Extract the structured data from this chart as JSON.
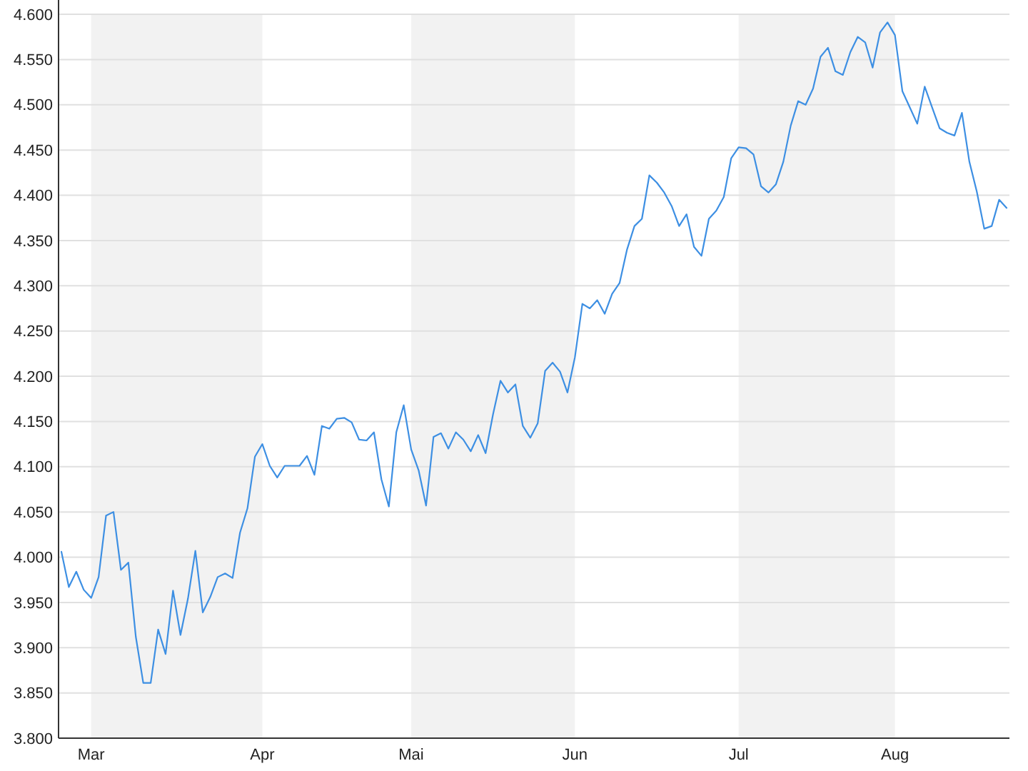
{
  "chart_data": {
    "type": "line",
    "color": "#3d8fe3",
    "categories": [
      null,
      null,
      null,
      null,
      "Mar",
      null,
      null,
      null,
      null,
      null,
      null,
      null,
      null,
      null,
      null,
      null,
      null,
      null,
      null,
      null,
      null,
      null,
      null,
      null,
      null,
      null,
      null,
      "Apr",
      null,
      null,
      null,
      null,
      null,
      null,
      null,
      null,
      null,
      null,
      null,
      null,
      null,
      null,
      null,
      null,
      null,
      null,
      null,
      "Mai",
      null,
      null,
      null,
      null,
      null,
      null,
      null,
      null,
      null,
      null,
      null,
      null,
      null,
      null,
      null,
      null,
      null,
      null,
      null,
      null,
      null,
      "Jun",
      null,
      null,
      null,
      null,
      null,
      null,
      null,
      null,
      null,
      null,
      null,
      null,
      null,
      null,
      null,
      null,
      null,
      null,
      null,
      null,
      null,
      "Jul",
      null,
      null,
      null,
      null,
      null,
      null,
      null,
      null,
      null,
      null,
      null,
      null,
      null,
      null,
      null,
      null,
      null,
      null,
      null,
      null,
      "Aug",
      null,
      null,
      null,
      null,
      null,
      null,
      null,
      null,
      null,
      null,
      null,
      null,
      null,
      null,
      null
    ],
    "values": [
      4.006,
      3.967,
      3.984,
      3.964,
      3.955,
      3.978,
      4.046,
      4.05,
      3.986,
      3.994,
      3.912,
      3.861,
      3.861,
      3.92,
      3.893,
      3.963,
      3.914,
      3.954,
      4.007,
      3.939,
      3.956,
      3.978,
      3.982,
      3.977,
      4.027,
      4.054,
      4.111,
      4.125,
      4.101,
      4.088,
      4.101,
      4.101,
      4.101,
      4.112,
      4.091,
      4.145,
      4.142,
      4.153,
      4.154,
      4.149,
      4.13,
      4.129,
      4.138,
      4.086,
      4.056,
      4.138,
      4.168,
      4.119,
      4.096,
      4.057,
      4.133,
      4.137,
      4.12,
      4.138,
      4.13,
      4.117,
      4.135,
      4.115,
      4.158,
      4.195,
      4.182,
      4.191,
      4.145,
      4.132,
      4.148,
      4.206,
      4.215,
      4.205,
      4.182,
      4.221,
      4.28,
      4.275,
      4.284,
      4.269,
      4.291,
      4.303,
      4.34,
      4.366,
      4.374,
      4.422,
      4.414,
      4.403,
      4.388,
      4.366,
      4.379,
      4.343,
      4.333,
      4.374,
      4.383,
      4.398,
      4.441,
      4.453,
      4.452,
      4.445,
      4.41,
      4.403,
      4.412,
      4.437,
      4.477,
      4.504,
      4.5,
      4.518,
      4.553,
      4.563,
      4.537,
      4.533,
      4.558,
      4.575,
      4.569,
      4.541,
      4.58,
      4.591,
      4.577,
      4.515,
      4.497,
      4.479,
      4.52,
      4.497,
      4.474,
      4.469,
      4.466,
      4.491,
      4.437,
      4.404,
      4.363,
      4.366,
      4.395,
      4.386
    ],
    "ylim": [
      3.8,
      4.6
    ],
    "yticks": [
      {
        "value": 3.8,
        "label": "3.800"
      },
      {
        "value": 3.85,
        "label": "3.850"
      },
      {
        "value": 3.9,
        "label": "3.900"
      },
      {
        "value": 3.95,
        "label": "3.950"
      },
      {
        "value": 4.0,
        "label": "4.000"
      },
      {
        "value": 4.05,
        "label": "4.050"
      },
      {
        "value": 4.1,
        "label": "4.100"
      },
      {
        "value": 4.15,
        "label": "4.150"
      },
      {
        "value": 4.2,
        "label": "4.200"
      },
      {
        "value": 4.25,
        "label": "4.250"
      },
      {
        "value": 4.3,
        "label": "4.300"
      },
      {
        "value": 4.35,
        "label": "4.350"
      },
      {
        "value": 4.4,
        "label": "4.400"
      },
      {
        "value": 4.45,
        "label": "4.450"
      },
      {
        "value": 4.5,
        "label": "4.500"
      },
      {
        "value": 4.55,
        "label": "4.550"
      },
      {
        "value": 4.6,
        "label": "4.600"
      }
    ],
    "grid": "y",
    "bands": [
      {
        "axis": "x",
        "from": "Mar",
        "to": "Apr",
        "color": "#f2f2f2"
      },
      {
        "axis": "x",
        "from": "Mai",
        "to": "Jun",
        "color": "#f2f2f2"
      },
      {
        "axis": "x",
        "from": "Jul",
        "to": "Aug",
        "color": "#f2f2f2"
      }
    ]
  }
}
